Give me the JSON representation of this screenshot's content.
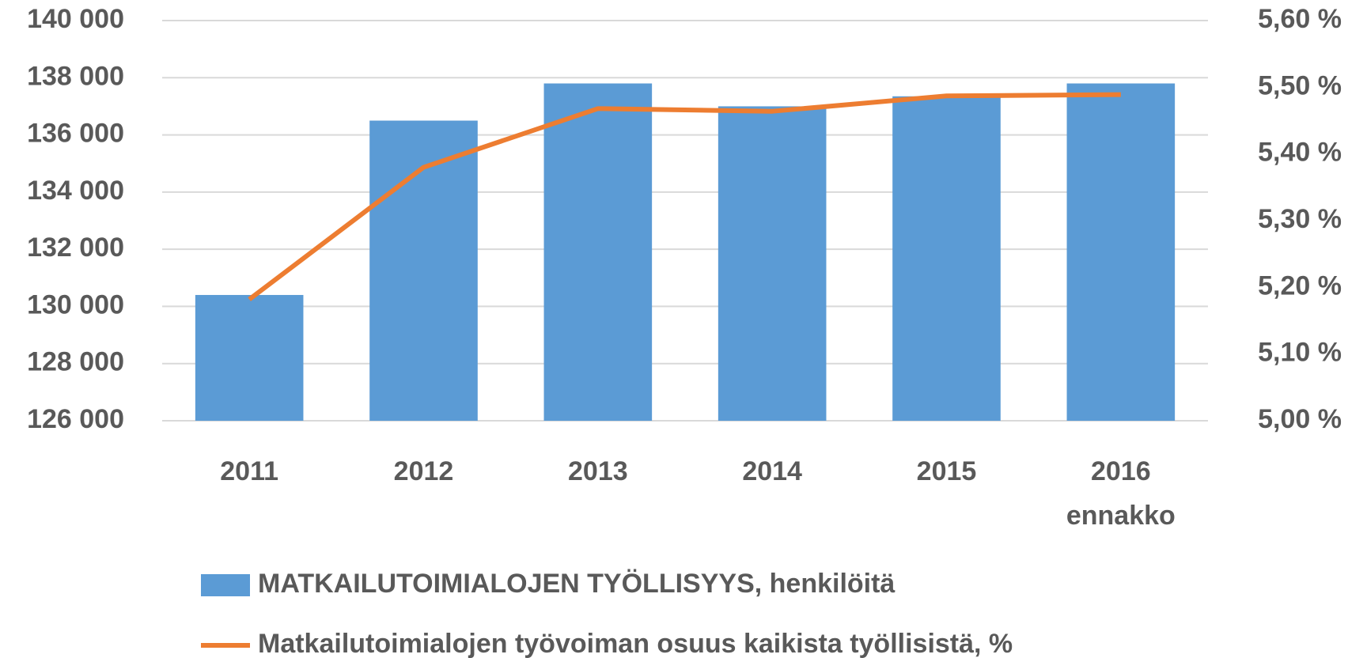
{
  "chart_data": {
    "type": "bar",
    "categories": [
      "2011",
      "2012",
      "2013",
      "2014",
      "2015",
      "2016 ennakko"
    ],
    "series": [
      {
        "name": "MATKAILUTOIMIALOJEN TYÖLLISYYS, henkilöitä",
        "type": "bar",
        "axis": "y",
        "color": "#5b9bd5",
        "values": [
          130400,
          136500,
          137800,
          137000,
          137350,
          137800
        ]
      },
      {
        "name": "Matkailutoimialojen työvoiman osuus kaikista työllisistä, %",
        "type": "line",
        "axis": "y2",
        "color": "#ed7d31",
        "values": [
          5.182,
          5.38,
          5.468,
          5.464,
          5.487,
          5.489
        ]
      }
    ],
    "ylim": [
      126000,
      140000
    ],
    "yticks": [
      {
        "value": 126000,
        "label": "126 000"
      },
      {
        "value": 128000,
        "label": "128 000"
      },
      {
        "value": 130000,
        "label": "130 000"
      },
      {
        "value": 132000,
        "label": "132 000"
      },
      {
        "value": 134000,
        "label": "134 000"
      },
      {
        "value": 136000,
        "label": "136 000"
      },
      {
        "value": 138000,
        "label": "138 000"
      },
      {
        "value": 140000,
        "label": "140 000"
      }
    ],
    "y2lim": [
      5.0,
      5.6
    ],
    "y2ticks": [
      {
        "value": 5.0,
        "label": "5,00 %"
      },
      {
        "value": 5.1,
        "label": "5,10 %"
      },
      {
        "value": 5.2,
        "label": "5,20 %"
      },
      {
        "value": 5.3,
        "label": "5,30 %"
      },
      {
        "value": 5.4,
        "label": "5,40 %"
      },
      {
        "value": 5.5,
        "label": "5,50 %"
      },
      {
        "value": 5.6,
        "label": "5,60 %"
      }
    ],
    "grid": true,
    "legend": "bottom"
  }
}
